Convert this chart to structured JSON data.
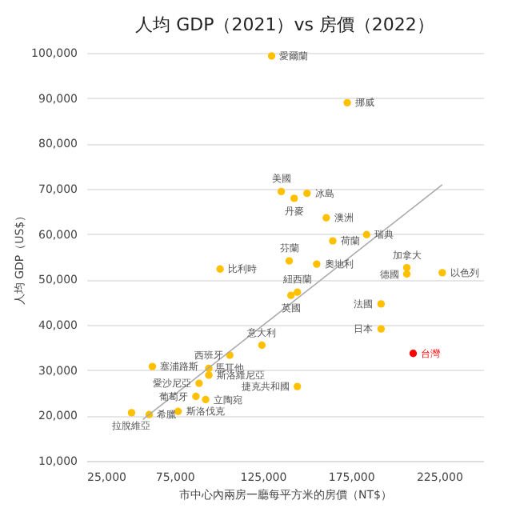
{
  "chart_data": {
    "type": "scatter",
    "title": "人均 GDP（2021）vs 房價（2022）",
    "xlabel": "市中心內兩房一廳每平方米的房價（NT$）",
    "ylabel": "人均 GDP（US$）",
    "xlim": [
      25000,
      250000
    ],
    "xticks": [
      {
        "value": 25000,
        "label": "25,000"
      },
      {
        "value": 75000,
        "label": "75,000"
      },
      {
        "value": 125000,
        "label": "125,000"
      },
      {
        "value": 175000,
        "label": "175,000"
      },
      {
        "value": 225000,
        "label": "225,000"
      }
    ],
    "ylim": [
      10000,
      100000
    ],
    "yticks": [
      {
        "value": 10000,
        "label": "10,000"
      },
      {
        "value": 20000,
        "label": "20,000"
      },
      {
        "value": 30000,
        "label": "30,000"
      },
      {
        "value": 40000,
        "label": "40,000"
      },
      {
        "value": 50000,
        "label": "50,000"
      },
      {
        "value": 60000,
        "label": "60,000"
      },
      {
        "value": 70000,
        "label": "70,000"
      },
      {
        "value": 80000,
        "label": "80,000"
      },
      {
        "value": 90000,
        "label": "90,000"
      },
      {
        "value": 100000,
        "label": "100,000"
      }
    ],
    "grid": "y",
    "marker": "circle",
    "series": [
      {
        "x": [
          130000,
          172900,
          135500,
          150100,
          142800,
          161000,
          183900,
          164700,
          140000,
          155600,
          100800,
          206700,
          206700,
          226800,
          144600,
          141000,
          192100,
          192100,
          210300,
          124500,
          106300,
          94400,
          62400,
          94400,
          88900,
          144600,
          92600,
          87100,
          77000,
          60600,
          50600
        ],
        "values": [
          99300,
          89000,
          69400,
          69000,
          67900,
          63600,
          59900,
          58500,
          54100,
          53400,
          52300,
          52600,
          51200,
          51500,
          47200,
          46500,
          44600,
          39100,
          33700,
          35500,
          33300,
          30400,
          30800,
          28900,
          27100,
          26400,
          23500,
          24200,
          20900,
          20200,
          20600
        ],
        "colors": [
          "#ffc000",
          "#ffc000",
          "#ffc000",
          "#ffc000",
          "#ffc000",
          "#ffc000",
          "#ffc000",
          "#ffc000",
          "#ffc000",
          "#ffc000",
          "#ffc000",
          "#ffc000",
          "#ffc000",
          "#ffc000",
          "#ffc000",
          "#ffc000",
          "#ffc000",
          "#ffc000",
          "#ff0000",
          "#ffc000",
          "#ffc000",
          "#ffc000",
          "#ffc000",
          "#ffc000",
          "#ffc000",
          "#ffc000",
          "#ffc000",
          "#ffc000",
          "#ffc000",
          "#ffc000",
          "#ffc000"
        ]
      },
      {
        "type": "line",
        "x": [
          57000,
          226800
        ],
        "values": [
          19100,
          70900
        ],
        "color": "#aaaaaa",
        "marker": "none",
        "line_style": "solid"
      }
    ],
    "annotations": [
      {
        "text": "愛爾蘭",
        "x": 130000,
        "y": 99300
      },
      {
        "text": "挪威",
        "x": 172900,
        "y": 89000
      },
      {
        "text": "美國",
        "x": 135500,
        "y": 69400
      },
      {
        "text": "冰島",
        "x": 150100,
        "y": 69000
      },
      {
        "text": "丹麥",
        "x": 142800,
        "y": 67900
      },
      {
        "text": "澳洲",
        "x": 161000,
        "y": 63600
      },
      {
        "text": "瑞典",
        "x": 183900,
        "y": 59900
      },
      {
        "text": "荷蘭",
        "x": 164700,
        "y": 58500
      },
      {
        "text": "芬蘭",
        "x": 140000,
        "y": 54100
      },
      {
        "text": "奧地利",
        "x": 155600,
        "y": 53400
      },
      {
        "text": "比利時",
        "x": 100800,
        "y": 52300
      },
      {
        "text": "加拿大",
        "x": 206700,
        "y": 52600
      },
      {
        "text": "德國",
        "x": 206700,
        "y": 51200
      },
      {
        "text": "以色列",
        "x": 226800,
        "y": 51500
      },
      {
        "text": "紐西蘭",
        "x": 144600,
        "y": 47200
      },
      {
        "text": "英國",
        "x": 141000,
        "y": 46500
      },
      {
        "text": "法國",
        "x": 192100,
        "y": 44600
      },
      {
        "text": "日本",
        "x": 192100,
        "y": 39100
      },
      {
        "text": "台灣",
        "x": 210300,
        "y": 33700
      },
      {
        "text": "意大利",
        "x": 124500,
        "y": 35500
      },
      {
        "text": "馬耳他",
        "x": 106300,
        "y": 33300
      },
      {
        "text": "西班牙",
        "x": 94400,
        "y": 30400
      },
      {
        "text": "塞浦路斯",
        "x": 62400,
        "y": 30800
      },
      {
        "text": "斯洛維尼亞",
        "x": 94400,
        "y": 28900
      },
      {
        "text": "愛沙尼亞",
        "x": 88900,
        "y": 27100
      },
      {
        "text": "捷克共和國",
        "x": 144600,
        "y": 26400
      },
      {
        "text": "立陶宛",
        "x": 92600,
        "y": 23500
      },
      {
        "text": "葡萄牙",
        "x": 87100,
        "y": 24200
      },
      {
        "text": "斯洛伐克",
        "x": 77000,
        "y": 20900
      },
      {
        "text": "希臘",
        "x": 60600,
        "y": 20200
      },
      {
        "text": "拉脫維亞",
        "x": 50600,
        "y": 20600
      }
    ]
  }
}
